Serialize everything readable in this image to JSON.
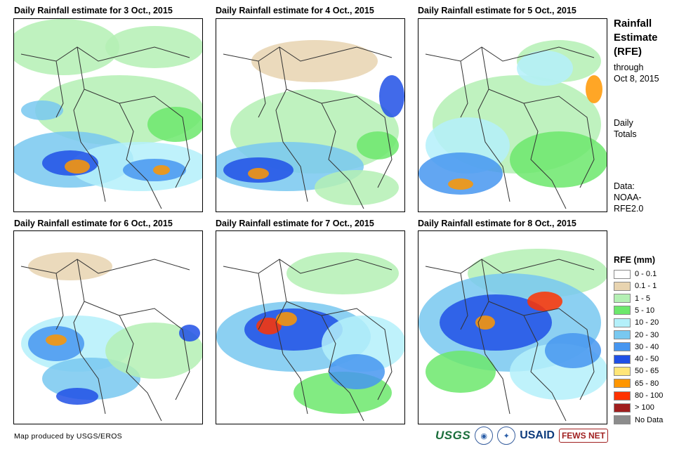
{
  "panels": [
    {
      "title": "Daily Rainfall estimate for 3 Oct., 2015"
    },
    {
      "title": "Daily Rainfall estimate for 4 Oct., 2015"
    },
    {
      "title": "Daily Rainfall estimate for 5 Oct., 2015"
    },
    {
      "title": "Daily Rainfall estimate for 6 Oct., 2015"
    },
    {
      "title": "Daily Rainfall estimate for 7 Oct., 2015"
    },
    {
      "title": "Daily Rainfall estimate for 8 Oct., 2015"
    }
  ],
  "side": {
    "title_line1": "Rainfall",
    "title_line2": "Estimate",
    "title_line3": "(RFE)",
    "through": "through",
    "through_date": "Oct 8, 2015",
    "daily": "Daily",
    "totals": "Totals",
    "data_label": "Data:",
    "data_src1": "NOAA-",
    "data_src2": "RFE2.0"
  },
  "legend": {
    "title": "RFE (mm)",
    "items": [
      {
        "label": "0 - 0.1",
        "color": "#ffffff"
      },
      {
        "label": "0.1 - 1",
        "color": "#e8d4b0"
      },
      {
        "label": "1 - 5",
        "color": "#b4f0b4"
      },
      {
        "label": "5 - 10",
        "color": "#6ce86c"
      },
      {
        "label": "10 - 20",
        "color": "#b4f0fa"
      },
      {
        "label": "20 - 30",
        "color": "#78c8f0"
      },
      {
        "label": "30 - 40",
        "color": "#4696f0"
      },
      {
        "label": "40 - 50",
        "color": "#2050e6"
      },
      {
        "label": "50 - 65",
        "color": "#ffe678"
      },
      {
        "label": "65 - 80",
        "color": "#ff9600"
      },
      {
        "label": "80 - 100",
        "color": "#ff3200"
      },
      {
        "label": "> 100",
        "color": "#a01e1e"
      },
      {
        "label": "No Data",
        "color": "#8c8c8c"
      }
    ]
  },
  "credit": "Map produced by USGS/EROS",
  "logos": {
    "usgs": "USGS",
    "usaid": "USAID",
    "fews": "FEWS NET"
  }
}
